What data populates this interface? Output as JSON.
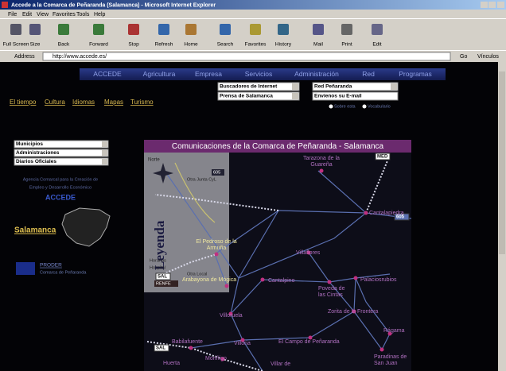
{
  "window": {
    "title": "Accede a la Comarca de Peñaranda (Salamanca) - Microsoft Internet Explorer"
  },
  "menu": [
    "File",
    "Edit",
    "View",
    "Favorites",
    "Tools",
    "Help"
  ],
  "toolbar": [
    "Full Screen",
    "Size",
    "Back",
    "Forward",
    "Stop",
    "Refresh",
    "Home",
    "Search",
    "Favorites",
    "History",
    "Mail",
    "Print",
    "Edit"
  ],
  "address": {
    "label": "Address",
    "url": "http://www.accede.es/",
    "go": "Go",
    "links": "Vínculos"
  },
  "nav": [
    "ACCEDE",
    "Agricultura",
    "Empresa",
    "Servicios",
    "Administración",
    "Red",
    "Programas"
  ],
  "selects": [
    "Buscadores de Internet",
    "Prensa de Salamanca",
    "Red Peñaranda",
    "Envíenos su E-mail"
  ],
  "radios": [
    "Sobre esta",
    "Vocabulario"
  ],
  "links": [
    "El tiempo",
    "Cultura",
    "Idiomas",
    "Mapas",
    "Turismo"
  ],
  "sidebar": {
    "menus": [
      "Municipios",
      "Administraciones",
      "Diarios Oficiales"
    ],
    "agency": [
      "Agencia Comarcal para la Creación de",
      "Empleo y Desarrollo Económico"
    ],
    "brand": "ACCEDE",
    "region": "Salamanca",
    "proder": "PRODER",
    "proder_sub": "Comarca de Peñaranda"
  },
  "map": {
    "title": "Comunicaciones de la Comarca de Peñaranda - Salamanca",
    "north": "Norte",
    "legend": "Leyenda",
    "legend_items": [
      "605",
      "Otra Junta CyL",
      "Horarios",
      "Hospital",
      "Otra Local",
      "RENFE"
    ],
    "badges": [
      "MED",
      "605",
      "SAL",
      "SAL"
    ],
    "places": [
      {
        "lines": [
          "Tarazona de la",
          "Guareña"
        ]
      },
      {
        "lines": [
          "Cantalapiedra"
        ]
      },
      {
        "lines": [
          "El Pedroso de la",
          "Armuña"
        ]
      },
      {
        "lines": [
          "Villaflores"
        ]
      },
      {
        "lines": [
          "Arabayona de Mógica"
        ]
      },
      {
        "lines": [
          "Cantalpino"
        ]
      },
      {
        "lines": [
          "Poveda de",
          "las Cintas"
        ]
      },
      {
        "lines": [
          "Palaciosrubios"
        ]
      },
      {
        "lines": [
          "Zorita de la Frontera"
        ]
      },
      {
        "lines": [
          "Villoruela"
        ]
      },
      {
        "lines": [
          "El Campo de Peñaranda"
        ]
      },
      {
        "lines": [
          "Rágama"
        ]
      },
      {
        "lines": [
          "Babilafuente"
        ]
      },
      {
        "lines": [
          "Villoria"
        ]
      },
      {
        "lines": [
          "Moriñigo"
        ]
      },
      {
        "lines": [
          "Paradinas de",
          "San Juan"
        ]
      },
      {
        "lines": [
          "Huerta"
        ]
      },
      {
        "lines": [
          "Villar de"
        ]
      }
    ]
  }
}
